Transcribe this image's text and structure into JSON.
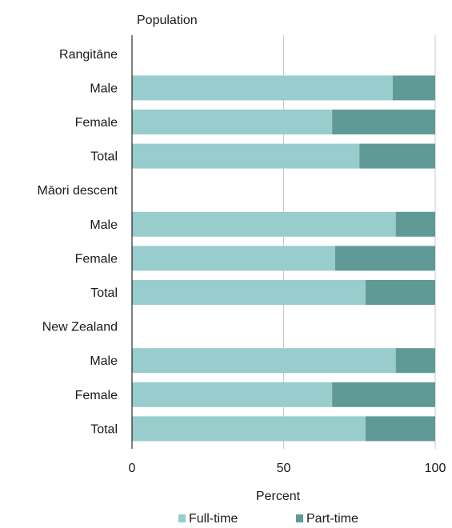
{
  "chart_data": {
    "type": "bar",
    "orientation": "horizontal",
    "stacked": true,
    "title": "",
    "category_axis_title": "Population",
    "xlabel": "Percent",
    "xlim": [
      0,
      100
    ],
    "xticks": [
      0,
      50,
      100
    ],
    "grid": true,
    "legend_position": "bottom",
    "categories": [
      "Rangitāne",
      "Male",
      "Female",
      "Total",
      "Māori descent",
      "Male",
      "Female",
      "Total",
      "New Zealand",
      "Male",
      "Female",
      "Total"
    ],
    "series": [
      {
        "name": "Full-time",
        "color": "#99cccc",
        "values": [
          null,
          86,
          66,
          75,
          null,
          87,
          67,
          77,
          null,
          87,
          66,
          77
        ]
      },
      {
        "name": "Part-time",
        "color": "#5f9a96",
        "values": [
          null,
          14,
          34,
          25,
          null,
          13,
          33,
          23,
          null,
          13,
          34,
          23
        ]
      }
    ]
  }
}
